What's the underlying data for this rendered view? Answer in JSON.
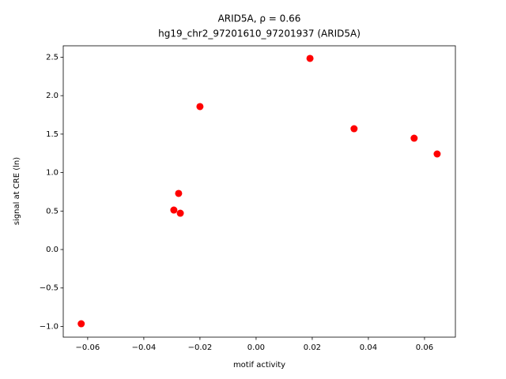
{
  "chart_data": {
    "type": "scatter",
    "title": "ARID5A, ρ = 0.66",
    "subtitle": "hg19_chr2_97201610_97201937 (ARID5A)",
    "x_label": "motif activity",
    "y_label": "signal at CRE (ln)",
    "x": [
      -0.0623,
      -0.0293,
      -0.0276,
      -0.027,
      -0.02,
      0.0192,
      0.0349,
      0.0563,
      0.0645
    ],
    "series": [
      {
        "name": "ARID5A",
        "color": "#ff0000",
        "values": [
          -0.965,
          0.513,
          0.729,
          0.472,
          1.858,
          2.484,
          1.57,
          1.447,
          1.242
        ]
      }
    ],
    "xlim": [
      -0.0687,
      0.071
    ],
    "ylim": [
      -1.139,
      2.648
    ],
    "xticks": [
      {
        "value": -0.06,
        "label": "−0.06"
      },
      {
        "value": -0.04,
        "label": "−0.04"
      },
      {
        "value": -0.02,
        "label": "−0.02"
      },
      {
        "value": 0,
        "label": "0.00"
      },
      0.02,
      0.04,
      0.06
    ],
    "yticks": [
      {
        "value": -1,
        "label": "−1.0"
      },
      {
        "value": -0.5,
        "label": "−0.5"
      },
      {
        "value": 0,
        "label": "0.0"
      },
      0.5,
      {
        "value": 1,
        "label": "1.0"
      },
      1.5,
      {
        "value": 2,
        "label": "2.0"
      },
      2.5
    ],
    "grid": false
  }
}
